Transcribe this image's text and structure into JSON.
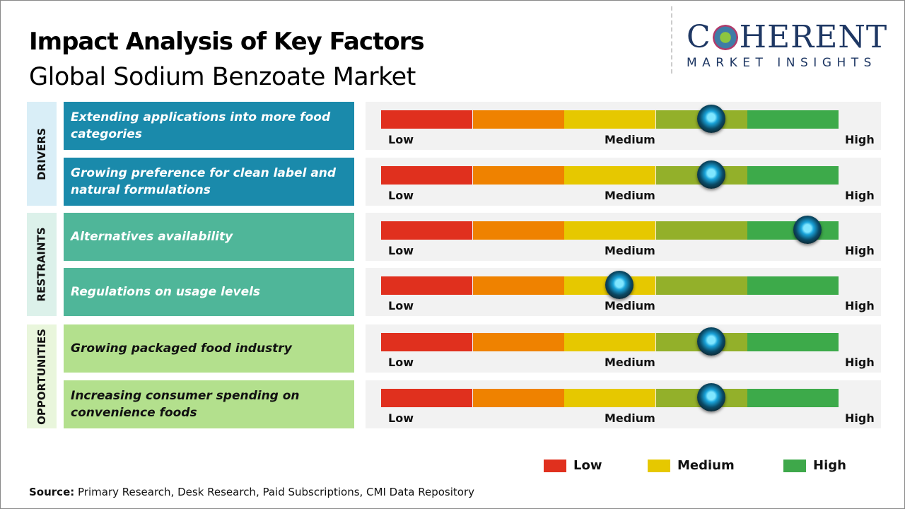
{
  "title": "Impact Analysis of Key Factors",
  "subtitle": "Global Sodium Benzoate Market",
  "logo": {
    "main": "COHERENT",
    "sub": "MARKET INSIGHTS"
  },
  "scale_labels": {
    "low": "Low",
    "medium": "Medium",
    "high": "High"
  },
  "segment_colors": [
    "#e0301e",
    "#ef8200",
    "#e6c800",
    "#93b02a",
    "#3daa4a"
  ],
  "categories": [
    {
      "name": "DRIVERS",
      "bg": "#d9eef7",
      "color": "#1a8aab",
      "text": "#ffffff",
      "factors": [
        {
          "text": "Extending applications into more food categories",
          "impact": 0.72
        },
        {
          "text": "Growing preference for clean label and natural formulations",
          "impact": 0.72
        }
      ]
    },
    {
      "name": "RESTRAINTS",
      "bg": "#dcf1ea",
      "color": "#4fb699",
      "text": "#ffffff",
      "factors": [
        {
          "text": "Alternatives availability",
          "impact": 0.93
        },
        {
          "text": "Regulations on usage levels",
          "impact": 0.52
        }
      ]
    },
    {
      "name": "OPPORTUNITIES",
      "bg": "#e9f6dc",
      "color": "#b3e08d",
      "text": "#111111",
      "factors": [
        {
          "text": "Growing packaged food industry",
          "impact": 0.72
        },
        {
          "text": "Increasing consumer spending on convenience foods",
          "impact": 0.72
        }
      ]
    }
  ],
  "legend": [
    {
      "label": "Low",
      "color": "#e0301e"
    },
    {
      "label": "Medium",
      "color": "#e6c800"
    },
    {
      "label": "High",
      "color": "#3ea84a"
    }
  ],
  "source": {
    "label": "Source:",
    "text": " Primary Research, Desk Research, Paid Subscriptions, CMI Data Repository"
  }
}
